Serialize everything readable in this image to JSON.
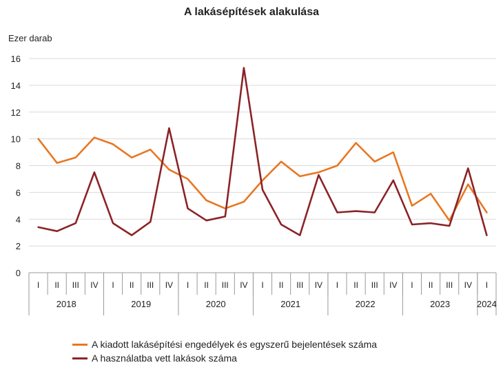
{
  "chart_data": {
    "type": "line",
    "title": "A lakásépítések alakulása",
    "ylabel": "Ezer darab",
    "ylim": [
      0,
      16
    ],
    "yticks": [
      0,
      2,
      4,
      6,
      8,
      10,
      12,
      14,
      16
    ],
    "grid": true,
    "quarters": [
      "I",
      "II",
      "III",
      "IV",
      "I",
      "II",
      "III",
      "IV",
      "I",
      "II",
      "III",
      "IV",
      "I",
      "II",
      "III",
      "IV",
      "I",
      "II",
      "III",
      "IV",
      "I",
      "II",
      "III",
      "IV",
      "I"
    ],
    "years": [
      {
        "label": "2018",
        "span": 4
      },
      {
        "label": "2019",
        "span": 4
      },
      {
        "label": "2020",
        "span": 4
      },
      {
        "label": "2021",
        "span": 4
      },
      {
        "label": "2022",
        "span": 4
      },
      {
        "label": "2023",
        "span": 4
      },
      {
        "label": "2024",
        "span": 1
      }
    ],
    "series": [
      {
        "name": "A kiadott lakásépítési engedélyek és egyszerű bejelentések száma",
        "color": "#e87722",
        "values": [
          10.0,
          8.2,
          8.6,
          10.1,
          9.6,
          8.6,
          9.2,
          7.7,
          7.0,
          5.4,
          4.8,
          5.3,
          6.9,
          8.3,
          7.2,
          7.5,
          8.0,
          9.7,
          8.3,
          9.0,
          5.0,
          5.9,
          3.9,
          6.6,
          4.5
        ]
      },
      {
        "name": "A használatba vett lakások száma",
        "color": "#8b2327",
        "values": [
          3.4,
          3.1,
          3.7,
          7.5,
          3.7,
          2.8,
          3.8,
          10.8,
          4.8,
          3.9,
          4.2,
          15.3,
          6.2,
          3.6,
          2.8,
          7.3,
          4.5,
          4.6,
          4.5,
          6.9,
          3.6,
          3.7,
          3.5,
          7.8,
          2.8
        ]
      }
    ]
  }
}
